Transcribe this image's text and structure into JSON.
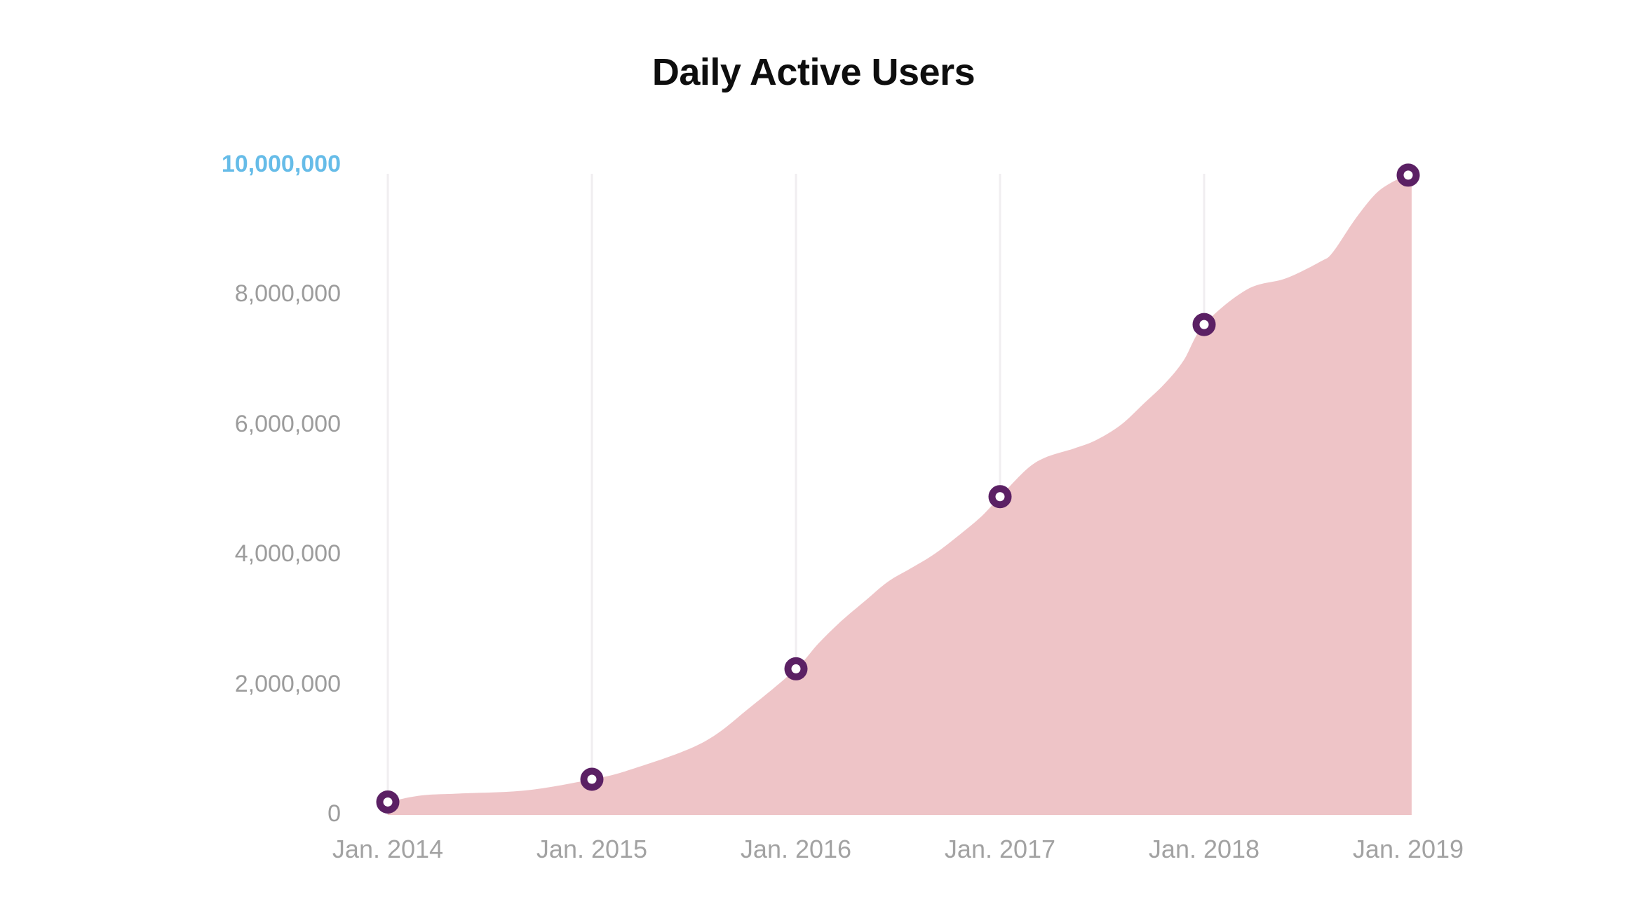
{
  "chart_data": {
    "type": "area",
    "title": "Daily Active Users",
    "xlabel": "",
    "ylabel": "",
    "ylim": [
      0,
      10000000
    ],
    "grid": "vertical-only",
    "legend": "none",
    "y_ticks": [
      {
        "label": "0",
        "value": 0,
        "highlight": false
      },
      {
        "label": "2,000,000",
        "value": 2000000,
        "highlight": false
      },
      {
        "label": "4,000,000",
        "value": 4000000,
        "highlight": false
      },
      {
        "label": "6,000,000",
        "value": 6000000,
        "highlight": false
      },
      {
        "label": "8,000,000",
        "value": 8000000,
        "highlight": false
      },
      {
        "label": "10,000,000",
        "value": 10000000,
        "highlight": true
      }
    ],
    "x_ticks": [
      {
        "label": "Jan. 2014",
        "year": 2014
      },
      {
        "label": "Jan. 2015",
        "year": 2015
      },
      {
        "label": "Jan. 2016",
        "year": 2016
      },
      {
        "label": "Jan. 2017",
        "year": 2017
      },
      {
        "label": "Jan. 2018",
        "year": 2018
      },
      {
        "label": "Jan. 2019",
        "year": 2019
      }
    ],
    "series": [
      {
        "name": "Daily Active Users",
        "points": [
          {
            "label": "Jan. 2014",
            "year": 2014,
            "value": 200000
          },
          {
            "label": "Jan. 2015",
            "year": 2015,
            "value": 550000
          },
          {
            "label": "Jan. 2016",
            "year": 2016,
            "value": 2250000
          },
          {
            "label": "Jan. 2017",
            "year": 2017,
            "value": 4900000
          },
          {
            "label": "Jan. 2018",
            "year": 2018,
            "value": 7550000
          },
          {
            "label": "Jan. 2019",
            "year": 2019,
            "value": 9850000
          }
        ],
        "curve_samples": [
          [
            2014.0,
            200000
          ],
          [
            2014.16,
            300000
          ],
          [
            2014.35,
            330000
          ],
          [
            2014.68,
            380000
          ],
          [
            2015.0,
            550000
          ],
          [
            2015.19,
            700000
          ],
          [
            2015.54,
            1110000
          ],
          [
            2015.78,
            1670000
          ],
          [
            2016.0,
            2250000
          ],
          [
            2016.11,
            2640000
          ],
          [
            2016.22,
            2980000
          ],
          [
            2016.34,
            3300000
          ],
          [
            2016.45,
            3590000
          ],
          [
            2016.57,
            3810000
          ],
          [
            2016.68,
            4020000
          ],
          [
            2016.8,
            4310000
          ],
          [
            2016.91,
            4600000
          ],
          [
            2017.0,
            4900000
          ],
          [
            2017.13,
            5320000
          ],
          [
            2017.22,
            5500000
          ],
          [
            2017.36,
            5640000
          ],
          [
            2017.47,
            5770000
          ],
          [
            2017.59,
            6000000
          ],
          [
            2017.7,
            6320000
          ],
          [
            2017.81,
            6650000
          ],
          [
            2017.9,
            7000000
          ],
          [
            2018.0,
            7550000
          ],
          [
            2018.21,
            8090000
          ],
          [
            2018.4,
            8260000
          ],
          [
            2018.57,
            8520000
          ],
          [
            2018.63,
            8660000
          ],
          [
            2018.74,
            9170000
          ],
          [
            2018.84,
            9560000
          ],
          [
            2018.92,
            9740000
          ],
          [
            2019.0,
            9850000
          ],
          [
            2019.017,
            9850000
          ]
        ]
      }
    ],
    "colors": {
      "area_fill": "#eec4c7",
      "marker_ring": "#5b2064",
      "marker_center": "#ffffff",
      "gridline": "#f0eef0",
      "y_axis_label": "#9c9c9c",
      "x_axis_label": "#a2a2a2",
      "highlight_label": "#66bce8",
      "title": "#0e0e0e",
      "background": "#ffffff"
    }
  }
}
